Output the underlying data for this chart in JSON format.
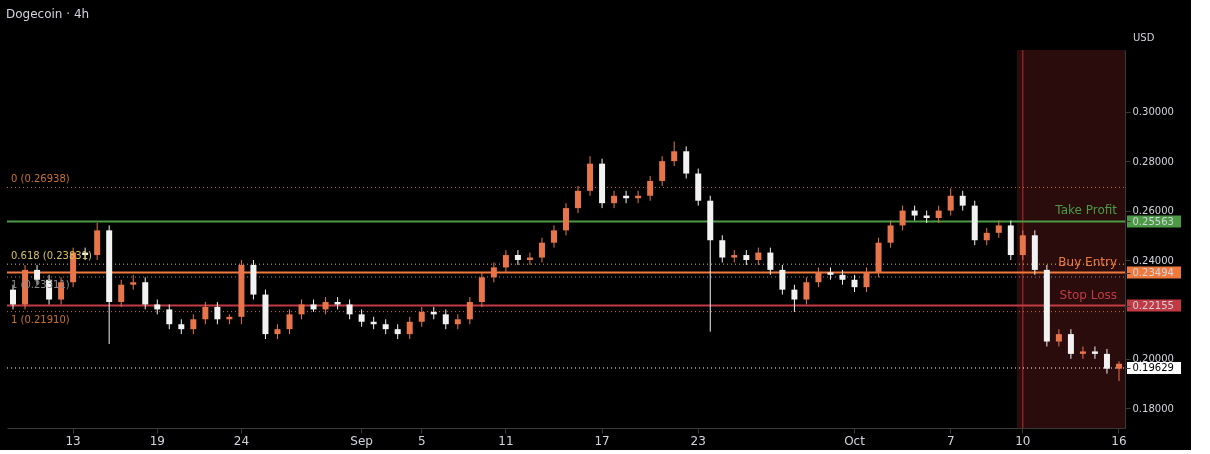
{
  "chart_data": {
    "type": "candlestick",
    "title": "Dogecoin · 4h",
    "ylabel": "USD",
    "categories": [
      null,
      null,
      null,
      null,
      null,
      "13",
      null,
      null,
      null,
      null,
      null,
      null,
      "19",
      null,
      null,
      null,
      null,
      null,
      null,
      "24",
      null,
      null,
      null,
      null,
      null,
      null,
      null,
      null,
      null,
      "Sep",
      null,
      null,
      null,
      null,
      "5",
      null,
      null,
      null,
      null,
      null,
      null,
      "11",
      null,
      null,
      null,
      null,
      null,
      null,
      null,
      "17",
      null,
      null,
      null,
      null,
      null,
      null,
      null,
      "23",
      null,
      null,
      null,
      null,
      null,
      null,
      null,
      null,
      null,
      null,
      null,
      null,
      "Oct",
      null,
      null,
      null,
      null,
      null,
      null,
      null,
      "7",
      null,
      null,
      null,
      null,
      null,
      "10",
      null,
      null,
      null,
      null,
      null,
      null,
      null,
      "16"
    ],
    "ohlc": [
      [
        0.228,
        0.23,
        0.22,
        0.222
      ],
      [
        0.222,
        0.238,
        0.22,
        0.236
      ],
      [
        0.236,
        0.238,
        0.23,
        0.232
      ],
      [
        0.232,
        0.234,
        0.222,
        0.224
      ],
      [
        0.224,
        0.233,
        0.222,
        0.231
      ],
      [
        0.231,
        0.245,
        0.229,
        0.243
      ],
      [
        0.243,
        0.245,
        0.24,
        0.242
      ],
      [
        0.242,
        0.255,
        0.24,
        0.252
      ],
      [
        0.252,
        0.254,
        0.206,
        0.223
      ],
      [
        0.223,
        0.232,
        0.221,
        0.23
      ],
      [
        0.23,
        0.234,
        0.228,
        0.231
      ],
      [
        0.231,
        0.233,
        0.22,
        0.222
      ],
      [
        0.222,
        0.224,
        0.218,
        0.22
      ],
      [
        0.22,
        0.222,
        0.212,
        0.214
      ],
      [
        0.214,
        0.216,
        0.21,
        0.212
      ],
      [
        0.212,
        0.218,
        0.21,
        0.216
      ],
      [
        0.216,
        0.223,
        0.214,
        0.221
      ],
      [
        0.221,
        0.223,
        0.214,
        0.216
      ],
      [
        0.216,
        0.218,
        0.214,
        0.217
      ],
      [
        0.217,
        0.24,
        0.214,
        0.238
      ],
      [
        0.238,
        0.24,
        0.224,
        0.226
      ],
      [
        0.226,
        0.228,
        0.208,
        0.21
      ],
      [
        0.21,
        0.214,
        0.208,
        0.212
      ],
      [
        0.212,
        0.22,
        0.21,
        0.218
      ],
      [
        0.218,
        0.224,
        0.216,
        0.222
      ],
      [
        0.222,
        0.224,
        0.219,
        0.22
      ],
      [
        0.22,
        0.225,
        0.218,
        0.223
      ],
      [
        0.223,
        0.225,
        0.22,
        0.222
      ],
      [
        0.222,
        0.224,
        0.216,
        0.218
      ],
      [
        0.218,
        0.22,
        0.213,
        0.215
      ],
      [
        0.215,
        0.217,
        0.212,
        0.214
      ],
      [
        0.214,
        0.216,
        0.21,
        0.212
      ],
      [
        0.212,
        0.214,
        0.208,
        0.21
      ],
      [
        0.21,
        0.217,
        0.208,
        0.215
      ],
      [
        0.215,
        0.221,
        0.213,
        0.219
      ],
      [
        0.219,
        0.221,
        0.216,
        0.218
      ],
      [
        0.218,
        0.22,
        0.212,
        0.214
      ],
      [
        0.214,
        0.218,
        0.212,
        0.216
      ],
      [
        0.216,
        0.225,
        0.214,
        0.223
      ],
      [
        0.223,
        0.235,
        0.221,
        0.233
      ],
      [
        0.233,
        0.239,
        0.231,
        0.237
      ],
      [
        0.237,
        0.244,
        0.235,
        0.242
      ],
      [
        0.242,
        0.244,
        0.238,
        0.24
      ],
      [
        0.24,
        0.243,
        0.238,
        0.241
      ],
      [
        0.241,
        0.249,
        0.239,
        0.247
      ],
      [
        0.247,
        0.254,
        0.245,
        0.252
      ],
      [
        0.252,
        0.263,
        0.25,
        0.261
      ],
      [
        0.261,
        0.27,
        0.259,
        0.268
      ],
      [
        0.268,
        0.282,
        0.266,
        0.279
      ],
      [
        0.279,
        0.281,
        0.261,
        0.263
      ],
      [
        0.263,
        0.268,
        0.261,
        0.266
      ],
      [
        0.266,
        0.268,
        0.263,
        0.265
      ],
      [
        0.265,
        0.268,
        0.263,
        0.266
      ],
      [
        0.266,
        0.274,
        0.264,
        0.272
      ],
      [
        0.272,
        0.282,
        0.27,
        0.28
      ],
      [
        0.28,
        0.288,
        0.278,
        0.284
      ],
      [
        0.284,
        0.286,
        0.273,
        0.275
      ],
      [
        0.275,
        0.277,
        0.262,
        0.264
      ],
      [
        0.264,
        0.266,
        0.211,
        0.248
      ],
      [
        0.248,
        0.25,
        0.239,
        0.241
      ],
      [
        0.241,
        0.244,
        0.239,
        0.242
      ],
      [
        0.242,
        0.244,
        0.238,
        0.24
      ],
      [
        0.24,
        0.245,
        0.238,
        0.243
      ],
      [
        0.243,
        0.245,
        0.234,
        0.236
      ],
      [
        0.236,
        0.238,
        0.226,
        0.228
      ],
      [
        0.228,
        0.23,
        0.219,
        0.224
      ],
      [
        0.224,
        0.233,
        0.222,
        0.231
      ],
      [
        0.231,
        0.237,
        0.229,
        0.235
      ],
      [
        0.235,
        0.237,
        0.232,
        0.234
      ],
      [
        0.234,
        0.236,
        0.23,
        0.232
      ],
      [
        0.232,
        0.234,
        0.227,
        0.229
      ],
      [
        0.229,
        0.237,
        0.227,
        0.235
      ],
      [
        0.235,
        0.249,
        0.233,
        0.247
      ],
      [
        0.247,
        0.256,
        0.245,
        0.254
      ],
      [
        0.254,
        0.262,
        0.252,
        0.26
      ],
      [
        0.26,
        0.262,
        0.256,
        0.258
      ],
      [
        0.258,
        0.26,
        0.255,
        0.257
      ],
      [
        0.257,
        0.262,
        0.255,
        0.26
      ],
      [
        0.26,
        0.269,
        0.258,
        0.266
      ],
      [
        0.266,
        0.268,
        0.26,
        0.262
      ],
      [
        0.262,
        0.264,
        0.246,
        0.248
      ],
      [
        0.248,
        0.253,
        0.246,
        0.251
      ],
      [
        0.251,
        0.256,
        0.249,
        0.254
      ],
      [
        0.254,
        0.256,
        0.24,
        0.242
      ],
      [
        0.242,
        0.252,
        0.24,
        0.25
      ],
      [
        0.25,
        0.252,
        0.234,
        0.236
      ],
      [
        0.236,
        0.238,
        0.205,
        0.207
      ],
      [
        0.207,
        0.212,
        0.205,
        0.21
      ],
      [
        0.21,
        0.212,
        0.2,
        0.202
      ],
      [
        0.202,
        0.205,
        0.2,
        0.203
      ],
      [
        0.203,
        0.205,
        0.2,
        0.202
      ],
      [
        0.202,
        0.204,
        0.194,
        0.196
      ],
      [
        0.196,
        0.199,
        0.191,
        0.198
      ]
    ],
    "colors": [
      "#f2f2f2",
      "#e8744a",
      "#f2f2f2",
      "#f2f2f2",
      "#e8744a",
      "#e8744a",
      "#f2f2f2",
      "#e8744a",
      "#f2f2f2",
      "#e8744a",
      "#e8744a",
      "#f2f2f2",
      "#f2f2f2",
      "#f2f2f2",
      "#f2f2f2",
      "#e8744a",
      "#e8744a",
      "#f2f2f2",
      "#e8744a",
      "#e8744a",
      "#f2f2f2",
      "#f2f2f2",
      "#e8744a",
      "#e8744a",
      "#e8744a",
      "#f2f2f2",
      "#e8744a",
      "#f2f2f2",
      "#f2f2f2",
      "#f2f2f2",
      "#f2f2f2",
      "#f2f2f2",
      "#f2f2f2",
      "#e8744a",
      "#e8744a",
      "#f2f2f2",
      "#f2f2f2",
      "#e8744a",
      "#e8744a",
      "#e8744a",
      "#e8744a",
      "#e8744a",
      "#f2f2f2",
      "#e8744a",
      "#e8744a",
      "#e8744a",
      "#e8744a",
      "#e8744a",
      "#e8744a",
      "#f2f2f2",
      "#e8744a",
      "#f2f2f2",
      "#e8744a",
      "#e8744a",
      "#e8744a",
      "#e8744a",
      "#f2f2f2",
      "#f2f2f2",
      "#f2f2f2",
      "#f2f2f2",
      "#e8744a",
      "#f2f2f2",
      "#e8744a",
      "#f2f2f2",
      "#f2f2f2",
      "#f2f2f2",
      "#e8744a",
      "#e8744a",
      "#f2f2f2",
      "#f2f2f2",
      "#f2f2f2",
      "#e8744a",
      "#e8744a",
      "#e8744a",
      "#e8744a",
      "#f2f2f2",
      "#f2f2f2",
      "#e8744a",
      "#e8744a",
      "#f2f2f2",
      "#f2f2f2",
      "#e8744a",
      "#e8744a",
      "#f2f2f2",
      "#e8744a",
      "#f2f2f2",
      "#f2f2f2",
      "#e8744a",
      "#f2f2f2",
      "#e8744a",
      "#f2f2f2",
      "#f2f2f2",
      "#e8744a"
    ],
    "ylim": [
      0.172,
      0.325
    ],
    "yticks": [
      {
        "value": 0.18,
        "label": "0.18000"
      },
      {
        "value": 0.19629,
        "label": "0.19629"
      },
      {
        "value": 0.2,
        "label": "0.20000"
      },
      {
        "value": 0.22155,
        "label": "0.22155"
      },
      {
        "value": 0.23494,
        "label": "0.23494"
      },
      {
        "value": 0.24,
        "label": "0.24000"
      },
      {
        "value": 0.25563,
        "label": "0.25563"
      },
      {
        "value": 0.26,
        "label": "0.26000"
      },
      {
        "value": 0.28,
        "label": "0.28000"
      },
      {
        "value": 0.3,
        "label": "0.30000"
      }
    ],
    "bands": [
      {
        "axis": "x",
        "from": "10",
        "to": "16",
        "color": "#2a0c0c"
      }
    ],
    "ref_lines": [
      {
        "axis": "x",
        "value": "10",
        "color": "#b3302e"
      },
      {
        "axis": "y",
        "value": 0.26938,
        "label": "0 (0.26938)",
        "color": "#c8702e",
        "line_style": "dotted"
      },
      {
        "axis": "y",
        "value": 0.23831,
        "label": "0.618 (0.23831)",
        "color": "#d6c25a",
        "line_style": "dotted"
      },
      {
        "axis": "y",
        "value": 0.23311,
        "label": "1 (0.23311)",
        "color": "#8a8a8a",
        "line_style": "dotted"
      },
      {
        "axis": "y",
        "value": 0.2191,
        "label": "1 (0.21910)",
        "color": "#c8702e",
        "line_style": "dotted"
      },
      {
        "axis": "y",
        "value": 0.25563,
        "label": "Take Profit",
        "color": "#4c9a45"
      },
      {
        "axis": "y",
        "value": 0.23494,
        "label": "Buy Entry",
        "color": "#f07a3c"
      },
      {
        "axis": "y",
        "value": 0.22155,
        "label": "Stop Loss",
        "color": "#c23a44"
      },
      {
        "axis": "y",
        "value": 0.19629,
        "color": "#ffffff",
        "line_style": "dotted"
      }
    ]
  }
}
